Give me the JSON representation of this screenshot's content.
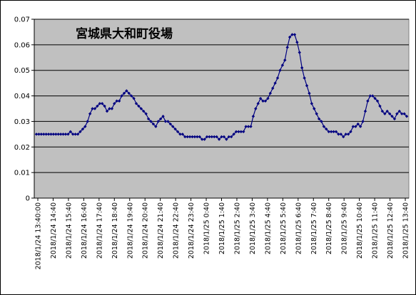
{
  "chart_data": {
    "type": "line",
    "title": "宮城県大和町役場",
    "xlabel": "",
    "ylabel": "",
    "ylim": [
      0,
      0.07
    ],
    "yticks": [
      "0",
      "0.01",
      "0.02",
      "0.03",
      "0.04",
      "0.05",
      "0.06",
      "0.07"
    ],
    "ytick_values": [
      0,
      0.01,
      0.02,
      0.03,
      0.04,
      0.05,
      0.06,
      0.07
    ],
    "xticks": [
      "2018/1/24  13:40:00",
      "2018/1/24 14:40",
      "2018/1/24 15:40",
      "2018/1/24 16:40",
      "2018/1/24 17:40",
      "2018/1/24 18:40",
      "2018/1/24 19:40",
      "2018/1/24 20:40",
      "2018/1/24 21:40",
      "2018/1/24 22:40",
      "2018/1/24 23:40",
      "2018/1/25 0:40",
      "2018/1/25 1:40",
      "2018/1/25 2:40",
      "2018/1/25 3:40",
      "2018/1/25 4:40",
      "2018/1/25 5:40",
      "2018/1/25 6:40",
      "2018/1/25 7:40",
      "2018/1/25 8:40",
      "2018/1/25 9:40",
      "2018/1/25 10:40",
      "2018/1/25 11:40",
      "2018/1/25 12:40",
      "2018/1/25 13:40"
    ],
    "grid": true,
    "legend": "none",
    "colors": {
      "plot_background": "#c0c0c0",
      "series": "#000080",
      "grid": "#000000"
    },
    "series": [
      {
        "values": [
          0.025,
          0.025,
          0.025,
          0.025,
          0.025,
          0.025,
          0.025,
          0.025,
          0.025,
          0.025,
          0.025,
          0.025,
          0.025,
          0.025,
          0.026,
          0.025,
          0.025,
          0.025,
          0.026,
          0.027,
          0.028,
          0.03,
          0.033,
          0.035,
          0.035,
          0.036,
          0.037,
          0.037,
          0.036,
          0.034,
          0.035,
          0.035,
          0.037,
          0.038,
          0.038,
          0.04,
          0.041,
          0.042,
          0.041,
          0.04,
          0.039,
          0.037,
          0.036,
          0.035,
          0.034,
          0.033,
          0.031,
          0.03,
          0.029,
          0.028,
          0.03,
          0.031,
          0.032,
          0.03,
          0.03,
          0.029,
          0.028,
          0.027,
          0.026,
          0.025,
          0.025,
          0.024,
          0.024,
          0.024,
          0.024,
          0.024,
          0.024,
          0.024,
          0.023,
          0.023,
          0.024,
          0.024,
          0.024,
          0.024,
          0.024,
          0.023,
          0.024,
          0.024,
          0.023,
          0.024,
          0.024,
          0.025,
          0.026,
          0.026,
          0.026,
          0.026,
          0.028,
          0.028,
          0.028,
          0.032,
          0.035,
          0.037,
          0.039,
          0.038,
          0.038,
          0.039,
          0.041,
          0.043,
          0.045,
          0.047,
          0.05,
          0.052,
          0.054,
          0.059,
          0.063,
          0.064,
          0.064,
          0.061,
          0.057,
          0.051,
          0.047,
          0.044,
          0.041,
          0.037,
          0.035,
          0.033,
          0.031,
          0.03,
          0.028,
          0.027,
          0.026,
          0.026,
          0.026,
          0.026,
          0.025,
          0.025,
          0.024,
          0.025,
          0.025,
          0.026,
          0.028,
          0.028,
          0.029,
          0.028,
          0.03,
          0.034,
          0.038,
          0.04,
          0.04,
          0.039,
          0.038,
          0.036,
          0.034,
          0.033,
          0.034,
          0.033,
          0.032,
          0.031,
          0.033,
          0.034,
          0.033,
          0.033,
          0.032
        ]
      }
    ]
  }
}
